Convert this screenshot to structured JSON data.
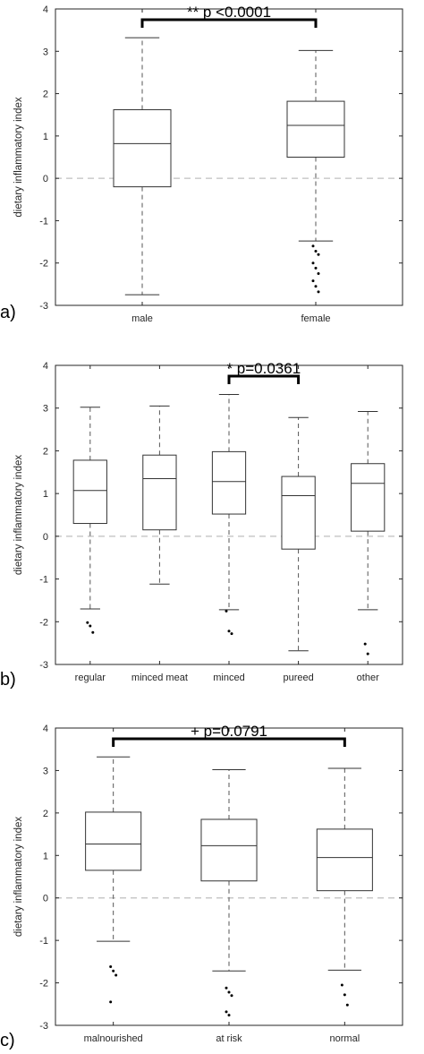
{
  "chart_data": [
    {
      "type": "box",
      "panel_label": "a)",
      "ylabel": "dietary inflammatory index",
      "ylim": [
        -3,
        4
      ],
      "yticks": [
        -3,
        -2,
        -1,
        0,
        1,
        2,
        3,
        4
      ],
      "reference_line": 0,
      "categories": [
        "male",
        "female"
      ],
      "boxes": [
        {
          "whisker_low": -2.75,
          "q1": -0.2,
          "median": 0.82,
          "q3": 1.62,
          "whisker_high": 3.32,
          "outliers": []
        },
        {
          "whisker_low": -1.48,
          "q1": 0.5,
          "median": 1.25,
          "q3": 1.82,
          "whisker_high": 3.02,
          "outliers": [
            -1.6,
            -1.72,
            -1.8,
            -2.0,
            -2.12,
            -2.25,
            -2.42,
            -2.55,
            -2.68
          ]
        }
      ],
      "annotation": {
        "text": "** p <0.0001",
        "from": 0,
        "to": 1
      }
    },
    {
      "type": "box",
      "panel_label": "b)",
      "ylabel": "dietary inflammatory index",
      "ylim": [
        -3,
        4
      ],
      "yticks": [
        -3,
        -2,
        -1,
        0,
        1,
        2,
        3,
        4
      ],
      "reference_line": 0,
      "categories": [
        "regular",
        "minced meat",
        "minced",
        "pureed",
        "other"
      ],
      "boxes": [
        {
          "whisker_low": -1.7,
          "q1": 0.3,
          "median": 1.07,
          "q3": 1.78,
          "whisker_high": 3.02,
          "outliers": [
            -2.02,
            -2.1,
            -2.25
          ]
        },
        {
          "whisker_low": -1.12,
          "q1": 0.15,
          "median": 1.35,
          "q3": 1.9,
          "whisker_high": 3.05,
          "outliers": []
        },
        {
          "whisker_low": -1.72,
          "q1": 0.52,
          "median": 1.28,
          "q3": 1.98,
          "whisker_high": 3.32,
          "outliers": [
            -1.75,
            -2.22,
            -2.28
          ]
        },
        {
          "whisker_low": -2.68,
          "q1": -0.3,
          "median": 0.95,
          "q3": 1.4,
          "whisker_high": 2.78,
          "outliers": []
        },
        {
          "whisker_low": -1.72,
          "q1": 0.12,
          "median": 1.24,
          "q3": 1.7,
          "whisker_high": 2.92,
          "outliers": [
            -2.52,
            -2.75
          ]
        }
      ],
      "annotation": {
        "text": "* p=0.0361",
        "from": 2,
        "to": 3
      }
    },
    {
      "type": "box",
      "panel_label": "c)",
      "ylabel": "dietary inflammatory index",
      "ylim": [
        -3,
        4
      ],
      "yticks": [
        -3,
        -2,
        -1,
        0,
        1,
        2,
        3,
        4
      ],
      "reference_line": 0,
      "categories": [
        "malnourished",
        "at risk",
        "normal"
      ],
      "boxes": [
        {
          "whisker_low": -1.02,
          "q1": 0.65,
          "median": 1.27,
          "q3": 2.02,
          "whisker_high": 3.32,
          "outliers": [
            -1.62,
            -1.72,
            -1.82,
            -2.45
          ]
        },
        {
          "whisker_low": -1.72,
          "q1": 0.4,
          "median": 1.23,
          "q3": 1.85,
          "whisker_high": 3.02,
          "outliers": [
            -2.12,
            -2.22,
            -2.3,
            -2.68,
            -2.76
          ]
        },
        {
          "whisker_low": -1.7,
          "q1": 0.17,
          "median": 0.95,
          "q3": 1.62,
          "whisker_high": 3.05,
          "outliers": [
            -2.05,
            -2.28,
            -2.52
          ]
        }
      ],
      "annotation": {
        "text": "+ p=0.0791",
        "from": 0,
        "to": 2
      }
    }
  ],
  "colors": {
    "box": "#333333",
    "axis": "#262626",
    "reference_line": "#bfbfbf",
    "annotation": "#000000"
  }
}
